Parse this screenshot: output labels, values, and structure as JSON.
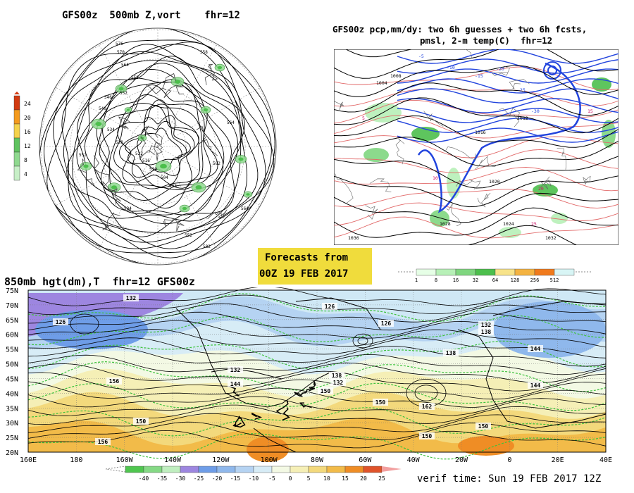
{
  "panel_500mb": {
    "title": "GFS00z  500mb Z,vort    fhr=12",
    "colorbar_ticks": [
      "24",
      "20",
      "16",
      "12",
      "8",
      "4"
    ],
    "colorbar_colors": [
      "#d23a10",
      "#f49a1d",
      "#f4d24b",
      "#5fc35f",
      "#8fd98f",
      "#c7efc7"
    ],
    "contour_labels": [
      "576",
      "570",
      "564",
      "558",
      "552",
      "546",
      "540",
      "534",
      "528",
      "522",
      "516",
      "510",
      "504",
      "498"
    ]
  },
  "panel_precip": {
    "title_line1": "GFS00z pcp,mm/dy: two 6h guesses + two 6h fcsts,",
    "title_line2": "pmsl, 2-m temp(C)  fhr=12",
    "pressure_labels": [
      "1004",
      "1008",
      "1012",
      "1016",
      "1020",
      "1024",
      "1028",
      "1032",
      "1036"
    ],
    "temp_labels": [
      "-5",
      "-10",
      "-15",
      "-20",
      "-25",
      "-30",
      "5",
      "10",
      "15",
      "20",
      "25"
    ],
    "colorbar_ticks": [
      "1",
      "8",
      "16",
      "32",
      "64",
      "128",
      "256",
      "512"
    ],
    "colorbar_colors": [
      "#e6ffe6",
      "#b7f0b7",
      "#7fd67f",
      "#4cbf4c",
      "#f7e38a",
      "#f4b341",
      "#f07a1c",
      "#d8f5f5"
    ]
  },
  "forecast_box": {
    "line1": "Forecasts from",
    "line2": "00Z 19 FEB 2017",
    "bg_color": "#f0dc3c"
  },
  "panel_850mb": {
    "title": "850mb hgt(dm),T  fhr=12 GFS00z",
    "lat_labels": [
      "75N",
      "70N",
      "65N",
      "60N",
      "55N",
      "50N",
      "45N",
      "40N",
      "35N",
      "30N",
      "25N",
      "20N"
    ],
    "lon_labels": [
      "160E",
      "180",
      "160W",
      "140W",
      "120W",
      "100W",
      "80W",
      "60W",
      "40W",
      "20W",
      "0",
      "20E",
      "40E"
    ],
    "height_labels": [
      "132",
      "126",
      "126",
      "138",
      "132",
      "144",
      "150",
      "156",
      "162",
      "144",
      "138",
      "132",
      "150",
      "150",
      "156",
      "126",
      "132",
      "144",
      "138",
      "150",
      "150"
    ],
    "colorbar_ticks": [
      "-40",
      "-35",
      "-30",
      "-25",
      "-20",
      "-15",
      "-10",
      "-5",
      "0",
      "5",
      "10",
      "15",
      "20",
      "25"
    ],
    "colorbar_colors": [
      "#4fc64f",
      "#85d985",
      "#bfeebf",
      "#9d86e0",
      "#6e9de8",
      "#8fb8ec",
      "#b5d3f2",
      "#d7ecf6",
      "#f3f9e4",
      "#f5efb6",
      "#f3d97c",
      "#f2bb49",
      "#ef8d25",
      "#e0532a",
      "#f2a0a0"
    ],
    "verif_text": "verif time: Sun 19 FEB 2017 12Z"
  }
}
